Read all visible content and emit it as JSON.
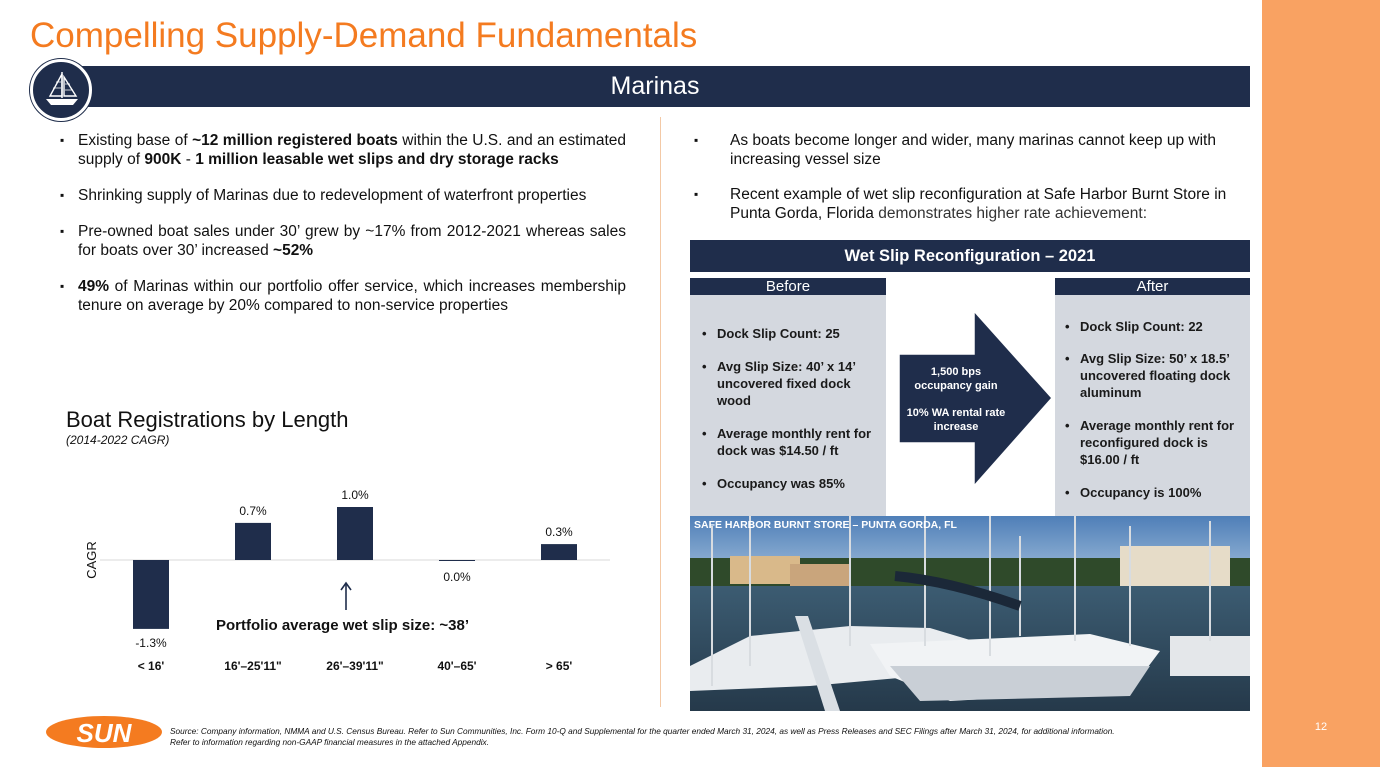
{
  "title": "Compelling Supply-Demand Fundamentals",
  "banner": "Marinas",
  "icon_sailboat": "sailboat-icon",
  "left_bullets": [
    {
      "pre": "Existing base of ",
      "b1": "~12 million registered boats",
      "mid": " within the U.S. and an estimated supply of ",
      "b2": "900K",
      "mid2": " - ",
      "b3": "1 million leasable wet slips and dry storage racks"
    },
    {
      "text": "Shrinking supply of Marinas due to redevelopment of waterfront properties"
    },
    {
      "pre": "Pre-owned boat sales under 30’ grew by ~17% from 2012-2021 whereas sales for boats over 30’ increased ",
      "b1": "~52%"
    },
    {
      "b1": "49%",
      "post": " of Marinas within our portfolio offer service, which increases membership tenure on average by 20% compared to non-service properties"
    }
  ],
  "right_bullets": [
    {
      "text": "As boats become longer and wider, many marinas cannot keep up with increasing vessel size"
    },
    {
      "pre": "Recent example of wet slip reconfiguration at Safe Harbor Burnt Store in Punta Gorda, Florida ",
      "post": "demonstrates higher rate achievement:"
    }
  ],
  "chart_title": "Boat Registrations by Length",
  "chart_subtitle": "(2014-2022 CAGR)",
  "chart_data": {
    "type": "bar",
    "title": "Boat Registrations by Length",
    "subtitle": "(2014-2022 CAGR)",
    "categories": [
      "< 16'",
      "16'–25'11\"",
      "26'–39'11\"",
      "40'–65'",
      "> 65'"
    ],
    "values": [
      -1.3,
      0.7,
      1.0,
      0.0,
      0.3
    ],
    "labels": [
      "-1.3%",
      "0.7%",
      "1.0%",
      "0.0%",
      "0.3%"
    ],
    "ylabel": "CAGR",
    "xlabel": "",
    "ylim": [
      -1.3,
      1.0
    ],
    "grid": false,
    "color": "#1F2D4B"
  },
  "callout": "Portfolio average wet slip size: ~38’",
  "wet_slip": {
    "header": "Wet Slip Reconfiguration – 2021",
    "before_label": "Before",
    "after_label": "After",
    "before_items": [
      "Dock Slip Count: 25",
      "Avg Slip Size: 40’ x 14’ uncovered fixed dock wood",
      "Average monthly rent for dock was $14.50 / ft",
      "Occupancy was 85%"
    ],
    "after_items": [
      "Dock Slip Count: 22",
      "Avg Slip Size: 50’ x 18.5’ uncovered floating dock aluminum",
      "Average monthly rent for reconfigured dock is $16.00 / ft",
      "Occupancy is 100%"
    ],
    "arrow_line1": "1,500 bps occupancy gain",
    "arrow_line2": "10% WA rental rate increase"
  },
  "photo_caption": "SAFE HARBOR BURNT STORE – PUNTA GORDA, FL",
  "logo_text": "SUN",
  "source_line1": "Source: Company information, NMMA and U.S. Census Bureau. Refer to Sun Communities, Inc. Form 10-Q and Supplemental for the quarter ended March 31, 2024, as well as Press Releases and SEC Filings after March 31, 2024, for additional information.",
  "source_line2": "Refer to information regarding non-GAAP financial measures in the attached Appendix.",
  "page_number": "12",
  "colors": {
    "navy": "#1F2D4B",
    "orange": "#F47B20",
    "strip": "#F9A262",
    "panel": "#D4D8DF"
  }
}
